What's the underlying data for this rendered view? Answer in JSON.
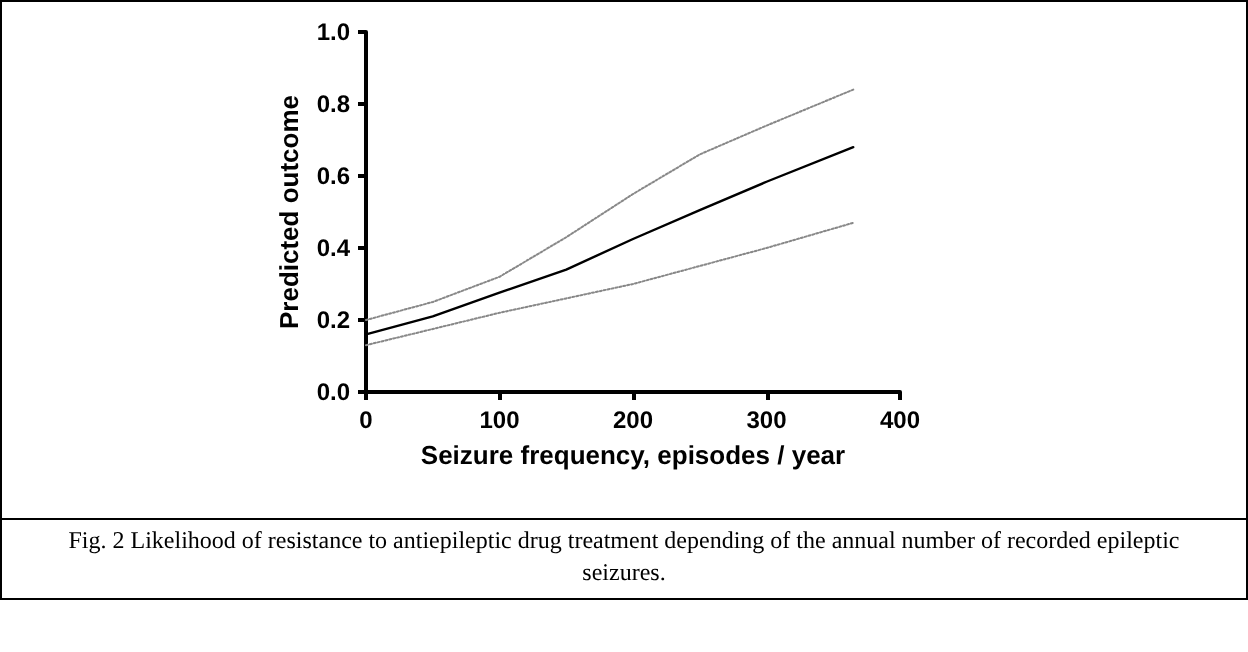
{
  "chart_data": {
    "type": "line",
    "xlabel": "Seizure frequency, episodes / year",
    "ylabel": "Predicted outcome",
    "x": [
      0,
      50,
      100,
      150,
      200,
      250,
      300,
      365
    ],
    "series": [
      {
        "color": "#000000",
        "values": [
          0.16,
          0.21,
          0.276,
          0.34,
          0.425,
          0.505,
          0.584,
          0.68
        ],
        "line_style": "solid"
      },
      {
        "color": "#888888",
        "values": [
          0.2,
          0.25,
          0.32,
          0.43,
          0.55,
          0.66,
          0.74,
          0.84
        ],
        "line_style": "dotted"
      },
      {
        "color": "#888888",
        "values": [
          0.13,
          0.175,
          0.22,
          0.26,
          0.3,
          0.35,
          0.4,
          0.47
        ],
        "line_style": "dotted"
      }
    ],
    "xlim": [
      0,
      400
    ],
    "xticks": [
      0,
      100,
      200,
      300,
      400
    ],
    "ylim": [
      0,
      1
    ],
    "yticks": [
      {
        "value": 0,
        "label": "0.0"
      },
      {
        "value": 0.2,
        "label": "0.2"
      },
      {
        "value": 0.4,
        "label": "0.4"
      },
      {
        "value": 0.6,
        "label": "0.6"
      },
      {
        "value": 0.8,
        "label": "0.8"
      },
      {
        "value": 1,
        "label": "1.0"
      }
    ],
    "grid": false,
    "marker": "none",
    "annotations": [
      "Fig. 2 Likelihood of resistance to antiepileptic drug treatment depending of the annual number of recorded epileptic seizures."
    ]
  }
}
